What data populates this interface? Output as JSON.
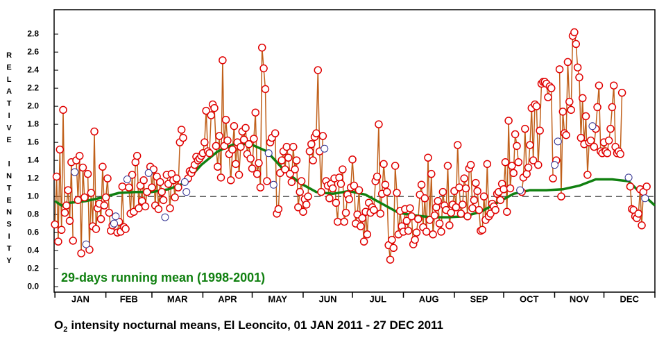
{
  "chart_data": {
    "type": "line",
    "title_parts": [
      "O",
      "2",
      "intensity nocturnal means, El Leoncito, 01 JAN 2011 - 27 DEC 2011"
    ],
    "y_label": "RELATIVE INTENSITY",
    "annotation": "29-days running mean (1998-2001)",
    "categories": [
      "JAN",
      "FEB",
      "MAR",
      "APR",
      "MAY",
      "JUN",
      "JUL",
      "AUG",
      "SEP",
      "OCT",
      "NOV",
      "DEC"
    ],
    "xlim": [
      0.5,
      366
    ],
    "xticks": [
      1,
      32,
      60,
      91,
      121,
      152,
      182,
      213,
      244,
      274,
      305,
      335,
      366
    ],
    "ylim": [
      -0.06,
      3.07
    ],
    "yticks": [
      {
        "value": 0,
        "label": "0.0"
      },
      0.2,
      0.4,
      0.6,
      0.8,
      {
        "value": 1,
        "label": "1.0"
      },
      1.2,
      1.4,
      1.6,
      1.8,
      {
        "value": 2,
        "label": "2.0"
      },
      2.2,
      2.4,
      2.6,
      2.8
    ],
    "reference_line": 1,
    "x": [
      1,
      2,
      3,
      4,
      5,
      6,
      7,
      8,
      9,
      10,
      11,
      12,
      13,
      14,
      15,
      16,
      17,
      18,
      19,
      20,
      21,
      22,
      23,
      24,
      25,
      26,
      27,
      28,
      29,
      30,
      31,
      32,
      33,
      34,
      35,
      36,
      37,
      38,
      39,
      40,
      41,
      42,
      43,
      44,
      45,
      46,
      47,
      48,
      49,
      50,
      51,
      52,
      53,
      54,
      55,
      56,
      57,
      58,
      59,
      60,
      61,
      62,
      63,
      64,
      65,
      66,
      67,
      68,
      69,
      70,
      71,
      72,
      73,
      74,
      75,
      76,
      77,
      78,
      79,
      80,
      81,
      82,
      83,
      84,
      85,
      86,
      87,
      88,
      89,
      90,
      91,
      92,
      93,
      94,
      95,
      96,
      97,
      98,
      99,
      100,
      101,
      102,
      103,
      104,
      105,
      106,
      107,
      108,
      109,
      110,
      111,
      112,
      113,
      114,
      115,
      116,
      117,
      118,
      119,
      120,
      121,
      122,
      123,
      124,
      125,
      126,
      127,
      128,
      129,
      130,
      131,
      132,
      133,
      134,
      135,
      136,
      137,
      138,
      139,
      140,
      141,
      142,
      143,
      144,
      145,
      146,
      147,
      148,
      149,
      150,
      151,
      152,
      153,
      154,
      155,
      156,
      157,
      158,
      159,
      160,
      161,
      162,
      163,
      164,
      165,
      166,
      167,
      168,
      169,
      170,
      171,
      172,
      173,
      174,
      175,
      176,
      177,
      178,
      179,
      180,
      181,
      182,
      183,
      184,
      185,
      186,
      187,
      188,
      189,
      190,
      191,
      192,
      193,
      194,
      195,
      196,
      197,
      198,
      199,
      200,
      201,
      202,
      203,
      204,
      205,
      206,
      207,
      208,
      209,
      210,
      211,
      212,
      213,
      214,
      215,
      216,
      217,
      218,
      219,
      220,
      221,
      222,
      223,
      224,
      225,
      226,
      227,
      228,
      229,
      230,
      231,
      232,
      233,
      234,
      235,
      236,
      237,
      238,
      239,
      240,
      241,
      242,
      243,
      244,
      245,
      246,
      247,
      248,
      249,
      250,
      251,
      252,
      253,
      254,
      255,
      256,
      257,
      258,
      259,
      260,
      261,
      262,
      263,
      264,
      265,
      266,
      267,
      268,
      269,
      270,
      271,
      272,
      273,
      274,
      275,
      276,
      277,
      278,
      279,
      280,
      281,
      282,
      283,
      284,
      285,
      286,
      287,
      288,
      289,
      290,
      291,
      292,
      293,
      294,
      295,
      296,
      297,
      298,
      299,
      300,
      301,
      302,
      303,
      304,
      305,
      306,
      307,
      308,
      309,
      310,
      311,
      312,
      313,
      314,
      315,
      316,
      317,
      318,
      319,
      320,
      321,
      322,
      323,
      324,
      325,
      326,
      327,
      328,
      329,
      330,
      331,
      332,
      333,
      334,
      335,
      336,
      337,
      338,
      339,
      340,
      341,
      342,
      343,
      344,
      345,
      346,
      347,
      348,
      349,
      350,
      351,
      352,
      353,
      354,
      355,
      356,
      357,
      358,
      359,
      360,
      361
    ],
    "series": [
      {
        "role": "measured",
        "color": "#e00000",
        "line_color": "#c0601a",
        "values": [
          0.69,
          1.22,
          0.5,
          1.52,
          0.63,
          1.96,
          0.82,
          0.9,
          1.07,
          0.73,
          1.38,
          0.51,
          null,
          1.4,
          0.96,
          1.45,
          0.37,
          1.32,
          0.99,
          null,
          1.25,
          0.41,
          1.04,
          0.67,
          1.72,
          0.64,
          0.87,
          0.92,
          0.75,
          1.33,
          0.9,
          0.99,
          1.2,
          0.82,
          0.62,
          0.68,
          null,
          null,
          0.6,
          0.72,
          0.61,
          1.11,
          0.66,
          0.64,
          null,
          1.1,
          0.81,
          1.24,
          0.83,
          1.38,
          1.45,
          0.87,
          1.12,
          0.95,
          1.18,
          0.89,
          1.05,
          null,
          1.33,
          1.1,
          1.3,
          0.9,
          1.22,
          0.86,
          1.16,
          1.05,
          0.96,
          null,
          1.24,
          1.14,
          0.87,
          1.25,
          1.18,
          0.99,
          1.2,
          1.1,
          1.6,
          1.74,
          1.65,
          null,
          null,
          1.2,
          1.28,
          1.26,
          1.3,
          1.35,
          1.44,
          1.4,
          1.42,
          1.45,
          1.48,
          1.6,
          1.95,
          1.5,
          1.48,
          1.9,
          2.02,
          1.98,
          1.56,
          1.33,
          1.67,
          1.21,
          2.51,
          1.56,
          1.85,
          1.62,
          1.47,
          1.18,
          1.52,
          1.78,
          1.36,
          1.6,
          1.24,
          1.55,
          1.72,
          1.63,
          1.76,
          1.47,
          1.58,
          1.42,
          1.31,
          1.64,
          1.93,
          1.25,
          1.37,
          1.1,
          2.65,
          2.42,
          2.19,
          1.17,
          null,
          1.6,
          1.65,
          null,
          1.7,
          0.81,
          0.86,
          1.26,
          1.4,
          1.5,
          1.3,
          1.55,
          1.43,
          1.25,
          1.16,
          1.55,
          1.3,
          1.4,
          0.88,
          1.05,
          1.17,
          0.83,
          0.97,
          0.91,
          1.0,
          1.5,
          1.58,
          1.4,
          1.66,
          1.7,
          2.4,
          1.5,
          1.05,
          1.67,
          null,
          1.17,
          1.12,
          0.98,
          1.14,
          1.09,
          1.2,
          0.93,
          0.72,
          1.21,
          1.14,
          1.3,
          0.72,
          0.82,
          1.02,
          0.97,
          1.1,
          1.41,
          1.12,
          0.7,
          0.8,
          1.07,
          0.67,
          0.76,
          0.5,
          0.83,
          0.58,
          0.93,
          0.82,
          0.88,
          0.85,
          1.17,
          1.22,
          1.8,
          0.81,
          1.03,
          1.36,
          1.13,
          1.05,
          0.46,
          0.3,
          0.52,
          0.43,
          1.34,
          1.04,
          0.58,
          0.84,
          0.67,
          0.61,
          0.86,
          0.73,
          0.62,
          0.87,
          0.78,
          0.47,
          0.52,
          0.6,
          0.75,
          1.02,
          1.13,
          0.66,
          0.98,
          0.61,
          1.43,
          0.74,
          1.25,
          0.58,
          0.79,
          0.88,
          0.95,
          0.7,
          0.61,
          1.05,
          0.9,
          0.85,
          1.34,
          0.68,
          0.82,
          0.91,
          1.06,
          0.88,
          1.57,
          1.1,
          0.81,
          0.91,
          1.2,
          1.09,
          0.78,
          1.31,
          1.35,
          0.87,
          0.96,
          1.15,
          1.06,
          0.85,
          0.62,
          0.63,
          1.0,
          0.74,
          1.36,
          0.78,
          0.81,
          0.92,
          0.89,
          0.85,
          1.03,
          1.05,
          0.96,
          1.14,
          1.08,
          1.38,
          0.83,
          1.84,
          1.09,
          1.34,
          1.26,
          1.69,
          1.56,
          1.38,
          null,
          1.05,
          1.21,
          1.75,
          1.25,
          1.32,
          1.57,
          1.98,
          1.4,
          2.02,
          2.0,
          1.35,
          1.73,
          2.25,
          2.27,
          2.27,
          2.25,
          2.1,
          2.22,
          2.2,
          1.2,
          null,
          1.4,
          null,
          2.41,
          1.0,
          1.94,
          1.7,
          1.68,
          2.49,
          2.05,
          1.96,
          2.78,
          2.82,
          2.69,
          2.43,
          2.32,
          1.65,
          2.09,
          1.58,
          1.89,
          1.24,
          1.6,
          1.62,
          null,
          1.55,
          1.75,
          1.99,
          2.23,
          1.5,
          1.48,
          1.6,
          1.5,
          1.48,
          1.62,
          1.75,
          1.99,
          2.23,
          1.55,
          1.48,
          1.5,
          1.47,
          2.15,
          null,
          null,
          null,
          null,
          1.11,
          0.86,
          0.85,
          0.78,
          0.76,
          0.81,
          1.08,
          0.68,
          1.05,
          null,
          1.11
        ]
      },
      {
        "role": "interpolated",
        "color": "#303090",
        "x": [
          13,
          20,
          37,
          38,
          45,
          58,
          68,
          80,
          81,
          131,
          134,
          165,
          284,
          305,
          307,
          328,
          350,
          360
        ],
        "values": [
          1.27,
          0.47,
          0.7,
          0.78,
          1.19,
          1.26,
          0.77,
          1.16,
          1.05,
          1.48,
          1.13,
          1.53,
          1.07,
          1.35,
          1.61,
          1.78,
          1.21,
          0.98
        ]
      },
      {
        "role": "running-mean",
        "color": "#108010",
        "x": [
          1,
          5,
          10,
          20,
          30,
          40,
          50,
          60,
          70,
          80,
          90,
          100,
          110,
          120,
          130,
          140,
          150,
          160,
          170,
          180,
          190,
          200,
          210,
          220,
          230,
          240,
          250,
          260,
          270,
          280,
          290,
          300,
          310,
          320,
          330,
          340,
          350,
          355,
          360,
          366
        ],
        "values": [
          0.95,
          0.9,
          0.93,
          0.95,
          0.99,
          1.04,
          1.05,
          1.05,
          1.08,
          1.15,
          1.35,
          1.5,
          1.58,
          1.58,
          1.5,
          1.3,
          1.15,
          1.05,
          1.03,
          1.06,
          1.02,
          0.92,
          0.82,
          0.79,
          0.77,
          0.77,
          0.78,
          0.83,
          0.93,
          1.03,
          1.07,
          1.07,
          1.08,
          1.12,
          1.19,
          1.19,
          1.17,
          1.08,
          1.0,
          0.9
        ]
      }
    ]
  }
}
